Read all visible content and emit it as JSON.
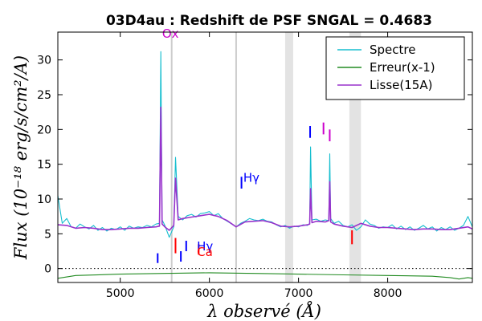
{
  "chart_data": {
    "type": "line",
    "title": "03D4au : Redshift de PSF SNGAL = 0.4683",
    "xlabel": "λ observé (Å)",
    "ylabel": "Flux (10⁻¹⁸ erg/s/cm²/A)",
    "xlim": [
      4300,
      8950
    ],
    "ylim": [
      -2,
      34
    ],
    "xticks": [
      5000,
      6000,
      7000,
      8000
    ],
    "yticks": [
      0,
      5,
      10,
      15,
      20,
      25,
      30
    ],
    "grid": false,
    "legend_position": "top-right",
    "series": [
      {
        "name": "Spectre",
        "color": "#17becf",
        "x": [
          4300,
          4350,
          4400,
          4450,
          4500,
          4550,
          4600,
          4650,
          4700,
          4750,
          4800,
          4850,
          4900,
          4950,
          5000,
          5050,
          5100,
          5150,
          5200,
          5250,
          5300,
          5350,
          5400,
          5440,
          5455,
          5470,
          5500,
          5550,
          5600,
          5620,
          5650,
          5700,
          5750,
          5800,
          5850,
          5900,
          5950,
          6000,
          6050,
          6100,
          6150,
          6200,
          6250,
          6300,
          6350,
          6400,
          6450,
          6500,
          6550,
          6600,
          6650,
          6700,
          6750,
          6800,
          6850,
          6900,
          6950,
          7000,
          7050,
          7100,
          7125,
          7135,
          7150,
          7200,
          7250,
          7300,
          7340,
          7350,
          7360,
          7400,
          7450,
          7500,
          7550,
          7600,
          7650,
          7700,
          7750,
          7800,
          7850,
          7900,
          7950,
          8000,
          8050,
          8100,
          8150,
          8200,
          8250,
          8300,
          8350,
          8400,
          8450,
          8500,
          8550,
          8600,
          8650,
          8700,
          8750,
          8800,
          8850,
          8900,
          8950
        ],
        "y": [
          10.5,
          6.5,
          7.2,
          6.0,
          5.8,
          6.4,
          6.0,
          5.7,
          6.2,
          5.5,
          5.9,
          5.4,
          5.8,
          5.6,
          6.0,
          5.5,
          6.1,
          5.8,
          6.0,
          5.9,
          6.2,
          6.0,
          6.4,
          6.5,
          31.2,
          7.0,
          6.2,
          4.5,
          6.0,
          16.0,
          7.5,
          7.0,
          7.6,
          7.8,
          7.4,
          7.9,
          8.0,
          8.2,
          7.6,
          7.9,
          7.2,
          6.8,
          6.4,
          6.0,
          6.5,
          6.8,
          7.2,
          7.0,
          6.9,
          7.1,
          6.8,
          6.7,
          6.3,
          6.0,
          6.2,
          5.8,
          6.1,
          6.0,
          6.3,
          6.2,
          6.5,
          17.5,
          7.0,
          7.1,
          6.8,
          7.0,
          6.9,
          16.5,
          7.2,
          6.5,
          6.8,
          6.2,
          6.0,
          6.3,
          5.5,
          6.0,
          7.0,
          6.4,
          6.2,
          5.8,
          6.0,
          5.9,
          6.3,
          5.7,
          6.1,
          5.6,
          6.0,
          5.5,
          5.8,
          6.2,
          5.7,
          6.0,
          5.4,
          5.9,
          5.6,
          6.0,
          5.5,
          5.8,
          6.2,
          7.5,
          6.0
        ]
      },
      {
        "name": "Erreur(x-1)",
        "color": "#228b22",
        "x": [
          4300,
          4500,
          5000,
          5500,
          6000,
          6500,
          7000,
          7500,
          8000,
          8500,
          8700,
          8800,
          8900,
          8950
        ],
        "y": [
          -1.4,
          -1.0,
          -0.8,
          -0.7,
          -0.6,
          -0.7,
          -0.8,
          -0.9,
          -1.0,
          -1.1,
          -1.3,
          -1.5,
          -1.3,
          -1.4
        ]
      },
      {
        "name": "Lisse(15A)",
        "color": "#9932cc",
        "x": [
          4300,
          4400,
          4500,
          4600,
          4700,
          4800,
          4900,
          5000,
          5100,
          5200,
          5300,
          5400,
          5440,
          5455,
          5470,
          5500,
          5550,
          5600,
          5620,
          5650,
          5700,
          5800,
          5900,
          6000,
          6100,
          6200,
          6300,
          6400,
          6500,
          6600,
          6700,
          6800,
          6900,
          7000,
          7100,
          7125,
          7135,
          7150,
          7200,
          7300,
          7340,
          7350,
          7360,
          7400,
          7500,
          7600,
          7700,
          7800,
          7900,
          8000,
          8100,
          8200,
          8300,
          8400,
          8500,
          8600,
          8700,
          8800,
          8900,
          8950
        ],
        "y": [
          6.3,
          6.2,
          5.8,
          5.9,
          5.8,
          5.6,
          5.6,
          5.7,
          5.8,
          5.8,
          5.9,
          6.0,
          6.1,
          23.2,
          6.4,
          6.0,
          5.5,
          6.2,
          13.0,
          7.0,
          7.2,
          7.4,
          7.6,
          7.8,
          7.5,
          6.9,
          6.0,
          6.7,
          6.8,
          6.9,
          6.6,
          6.1,
          6.0,
          6.1,
          6.3,
          6.4,
          11.5,
          6.6,
          6.8,
          6.7,
          6.9,
          12.5,
          6.7,
          6.4,
          6.1,
          5.9,
          6.5,
          6.1,
          5.9,
          5.9,
          5.8,
          5.7,
          5.6,
          5.7,
          5.7,
          5.6,
          5.6,
          5.8,
          6.0,
          5.7
        ]
      }
    ],
    "shaded_bands": [
      [
        6850,
        6940
      ],
      [
        7570,
        7700
      ]
    ],
    "vlines": [
      5577,
      6300
    ],
    "annotations": [
      {
        "text": "Ox",
        "x": 5470,
        "y": 33.2,
        "color": "#cc00cc"
      },
      {
        "text": "Hγ",
        "x": 6380,
        "y": 12.5,
        "color": "#0000ff"
      },
      {
        "text": "Hγ",
        "x": 5860,
        "y": 2.6,
        "color": "#0000ff"
      },
      {
        "text": "Ca",
        "x": 5860,
        "y": 1.8,
        "color": "#ff0000"
      }
    ],
    "markers": [
      {
        "x": 5620,
        "y1": 2.2,
        "y2": 4.4,
        "color": "#ff0000"
      },
      {
        "x": 5880,
        "y1": 2.0,
        "y2": 3.5,
        "color": "#ff0000"
      },
      {
        "x": 7600,
        "y1": 3.5,
        "y2": 5.5,
        "color": "#ff0000"
      },
      {
        "x": 5420,
        "y1": 0.8,
        "y2": 2.2,
        "color": "#0000ff"
      },
      {
        "x": 5680,
        "y1": 1.0,
        "y2": 2.5,
        "color": "#0000ff"
      },
      {
        "x": 5740,
        "y1": 2.5,
        "y2": 4.0,
        "color": "#0000ff"
      },
      {
        "x": 6360,
        "y1": 11.5,
        "y2": 13.2,
        "color": "#0000ff"
      },
      {
        "x": 7130,
        "y1": 18.8,
        "y2": 20.5,
        "color": "#0000ff"
      },
      {
        "x": 7280,
        "y1": 19.3,
        "y2": 21.0,
        "color": "#cc00cc"
      },
      {
        "x": 7350,
        "y1": 18.3,
        "y2": 20.0,
        "color": "#cc00cc"
      }
    ],
    "zero_line": 0
  }
}
